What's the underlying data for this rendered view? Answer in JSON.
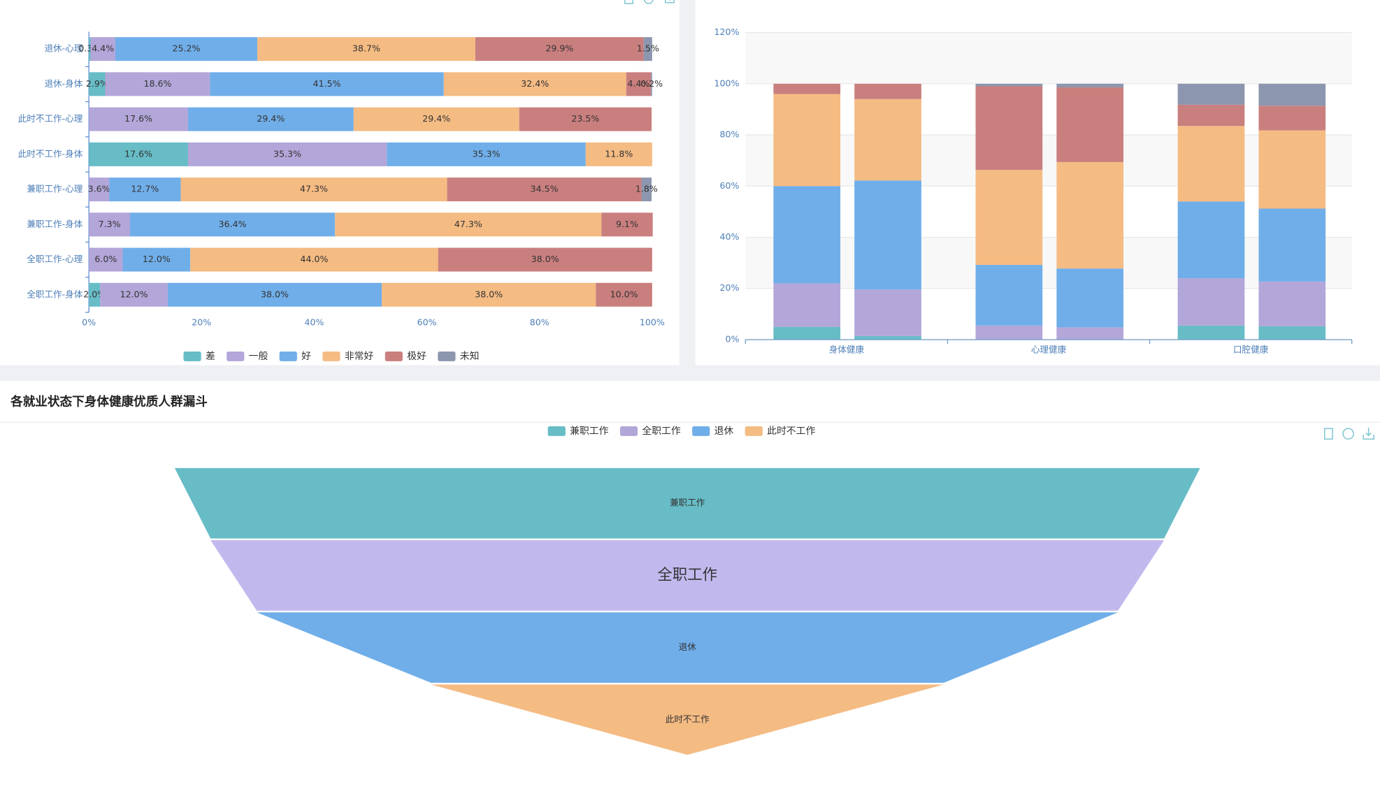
{
  "chart_data": [
    {
      "type": "bar",
      "orientation": "horizontal",
      "stacked": true,
      "categories": [
        "全职工作-身体",
        "全职工作-心理",
        "兼职工作-身体",
        "兼职工作-心理",
        "此时不工作-身体",
        "此时不工作-心理",
        "退休-身体",
        "退休-心理"
      ],
      "series": [
        {
          "name": "差",
          "color": "#67bcc6",
          "values": [
            2.0,
            null,
            null,
            null,
            17.6,
            null,
            2.9,
            0.3
          ],
          "value_labels": [
            "2.0%",
            null,
            null,
            null,
            "17.6%",
            null,
            "2.9%",
            "0.3%"
          ]
        },
        {
          "name": "一般",
          "color": "#b3a6d9",
          "values": [
            12.0,
            6.0,
            7.3,
            3.6,
            35.3,
            17.6,
            18.6,
            4.4
          ],
          "value_labels": [
            "12.0%",
            "6.0%",
            "7.3%",
            "3.6%",
            "35.3%",
            "17.6%",
            "18.6%",
            "4.4%"
          ]
        },
        {
          "name": "好",
          "color": "#70aee9",
          "values": [
            38.0,
            12.0,
            36.4,
            12.7,
            35.3,
            29.4,
            41.5,
            25.2
          ],
          "value_labels": [
            "38.0%",
            "12.0%",
            "36.4%",
            "12.7%",
            "35.3%",
            "29.4%",
            "41.5%",
            "25.2%"
          ]
        },
        {
          "name": "非常好",
          "color": "#f4bb83",
          "values": [
            38.0,
            44.0,
            47.3,
            47.3,
            11.8,
            29.4,
            32.4,
            38.7
          ],
          "value_labels": [
            "38.0%",
            "44.0%",
            "47.3%",
            "47.3%",
            "11.8%",
            "29.4%",
            "32.4%",
            "38.7%"
          ]
        },
        {
          "name": "极好",
          "color": "#c97f7e",
          "values": [
            10.0,
            38.0,
            9.1,
            34.5,
            null,
            23.5,
            4.4,
            29.9
          ],
          "value_labels": [
            "10.0%",
            "38.0%",
            "9.1%",
            "34.5%",
            null,
            "23.5%",
            "4.4%",
            "29.9%"
          ]
        },
        {
          "name": "未知",
          "color": "#8c96ae",
          "values": [
            null,
            null,
            null,
            1.8,
            null,
            null,
            0.2,
            1.5
          ],
          "value_labels": [
            null,
            null,
            null,
            "1.8%",
            null,
            null,
            "0.2%",
            "1.5%"
          ]
        }
      ],
      "xlim": [
        0,
        100
      ],
      "xticks": [
        {
          "value": 0,
          "label": "0%"
        },
        {
          "value": 20,
          "label": "20%"
        },
        {
          "value": 40,
          "label": "40%"
        },
        {
          "value": 60,
          "label": "60%"
        },
        {
          "value": 80,
          "label": "80%"
        },
        {
          "value": 100,
          "label": "100%"
        }
      ],
      "legend": "bottom"
    },
    {
      "type": "bar",
      "orientation": "vertical",
      "stacked": true,
      "categories": [
        "身体健康",
        "心理健康",
        "口腔健康"
      ],
      "stacks": [
        {
          "series": [
            {
              "color": "#67bcc6",
              "values": [
                5,
                0,
                5.5
              ]
            },
            {
              "color": "#b3a6d9",
              "values": [
                17,
                5.5,
                18.5
              ]
            },
            {
              "color": "#70aee9",
              "values": [
                38,
                23.7,
                30
              ]
            },
            {
              "color": "#f4bb83",
              "values": [
                36,
                37.1,
                29.5
              ]
            },
            {
              "color": "#c97f7e",
              "values": [
                4,
                32.7,
                8.3
              ]
            },
            {
              "color": "#8c96ae",
              "values": [
                0,
                1,
                8.2
              ]
            }
          ]
        },
        {
          "series": [
            {
              "color": "#67bcc6",
              "values": [
                1.4,
                0,
                5.2
              ]
            },
            {
              "color": "#b3a6d9",
              "values": [
                18.2,
                4.8,
                17.5
              ]
            },
            {
              "color": "#70aee9",
              "values": [
                42.6,
                23,
                28.5
              ]
            },
            {
              "color": "#f4bb83",
              "values": [
                31.8,
                41.6,
                30.6
              ]
            },
            {
              "color": "#c97f7e",
              "values": [
                6,
                29.2,
                9.6
              ]
            },
            {
              "color": "#8c96ae",
              "values": [
                0,
                1.4,
                8.6
              ]
            }
          ]
        }
      ],
      "ylim": [
        0,
        120
      ],
      "yticks": [
        {
          "value": 0,
          "label": "0%"
        },
        {
          "value": 20,
          "label": "20%"
        },
        {
          "value": 40,
          "label": "40%"
        },
        {
          "value": 60,
          "label": "60%"
        },
        {
          "value": 80,
          "label": "80%"
        },
        {
          "value": 100,
          "label": "100%"
        },
        {
          "value": 120,
          "label": "120%"
        }
      ],
      "grid": true
    },
    {
      "type": "funnel",
      "title": "各就业状态下身体健康优质人群漏斗",
      "categories": [
        "兼职工作",
        "全职工作",
        "退休",
        "此时不工作"
      ],
      "values": [
        100,
        93,
        84,
        50
      ],
      "colors": [
        "#67bcc6",
        "#c1b9ee",
        "#70aee9",
        "#f4bb83"
      ],
      "legend_colors": [
        "#67bcc6",
        "#b3a6d9",
        "#70aee9",
        "#f4bb83"
      ],
      "legend": "top"
    }
  ]
}
